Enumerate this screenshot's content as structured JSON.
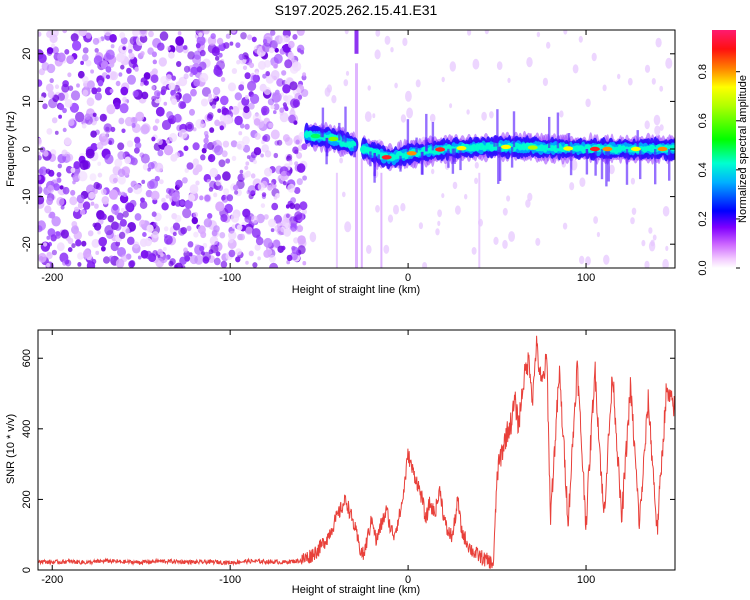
{
  "figure_title": "S197.2025.262.15.41.E31",
  "chart_data": [
    {
      "type": "heatmap",
      "xlabel": "Height of straight line (km)",
      "ylabel": "Frequency (Hz)",
      "xlim": [
        -208,
        150
      ],
      "ylim": [
        -25,
        25
      ],
      "x_ticks": [
        -200,
        -100,
        0,
        100
      ],
      "y_ticks": [
        -20,
        -10,
        0,
        10,
        20
      ],
      "colorbar": {
        "label": "Normalized spectral amplitude",
        "range": [
          0,
          0.97
        ],
        "ticks": [
          0.0,
          0.2,
          0.4,
          0.6,
          0.8
        ],
        "colors": [
          "#ffffff",
          "#ff00ff",
          "#8000ff",
          "#0000ff",
          "#00ffff",
          "#00ff00",
          "#ffff00",
          "#ff8000",
          "#ff0000",
          "#ff0080"
        ]
      },
      "regions": [
        {
          "name": "noise",
          "x_range": [
            -208,
            -58
          ],
          "f_range": [
            -25,
            25
          ],
          "amplitude": 0.1
        },
        {
          "name": "signal",
          "x_range": [
            -57,
            150
          ],
          "frequency_track_hz": [
            [
              -57,
              3
            ],
            [
              -40,
              2
            ],
            [
              -25,
              0
            ],
            [
              -10,
              -2
            ],
            [
              0,
              -1
            ],
            [
              20,
              0
            ],
            [
              50,
              0.5
            ],
            [
              100,
              0
            ],
            [
              150,
              0
            ]
          ],
          "amplitude": 0.6
        }
      ],
      "grid": false
    },
    {
      "type": "line",
      "xlabel": "Height of straight line (km)",
      "ylabel": "SNR (10 * v/v)",
      "xlim": [
        -208,
        150
      ],
      "ylim": [
        0,
        680
      ],
      "x_ticks": [
        -200,
        -100,
        0,
        100
      ],
      "y_ticks": [
        0,
        200,
        400,
        600
      ],
      "line_color": "#e8403a",
      "series": [
        {
          "x": [
            -208,
            -200,
            -190,
            -180,
            -170,
            -160,
            -150,
            -140,
            -130,
            -120,
            -110,
            -100,
            -90,
            -80,
            -70,
            -60,
            -55,
            -50,
            -45,
            -40,
            -35,
            -30,
            -27,
            -25,
            -22,
            -20,
            -18,
            -15,
            -12,
            -10,
            -8,
            -5,
            -3,
            0,
            2,
            5,
            8,
            10,
            12,
            15,
            18,
            20,
            22,
            25,
            28,
            30,
            33,
            35,
            38,
            40,
            43,
            45,
            47,
            48,
            50,
            52,
            55,
            58,
            60,
            62,
            65,
            68,
            70,
            72,
            75,
            78,
            80,
            85,
            90,
            95,
            100,
            105,
            110,
            115,
            120,
            125,
            130,
            135,
            140,
            145,
            150
          ],
          "y": [
            25,
            22,
            24,
            21,
            26,
            23,
            22,
            25,
            24,
            22,
            23,
            21,
            25,
            24,
            22,
            27,
            40,
            60,
            95,
            150,
            200,
            120,
            60,
            40,
            110,
            150,
            80,
            130,
            170,
            120,
            100,
            150,
            200,
            330,
            290,
            250,
            200,
            140,
            190,
            160,
            230,
            150,
            110,
            95,
            200,
            110,
            80,
            60,
            45,
            40,
            30,
            25,
            20,
            18,
            270,
            320,
            380,
            420,
            480,
            410,
            540,
            600,
            480,
            640,
            520,
            600,
            150,
            560,
            140,
            580,
            130,
            570,
            150,
            560,
            140,
            520,
            130,
            480,
            110,
            500,
            460
          ]
        }
      ],
      "grid": false
    }
  ]
}
